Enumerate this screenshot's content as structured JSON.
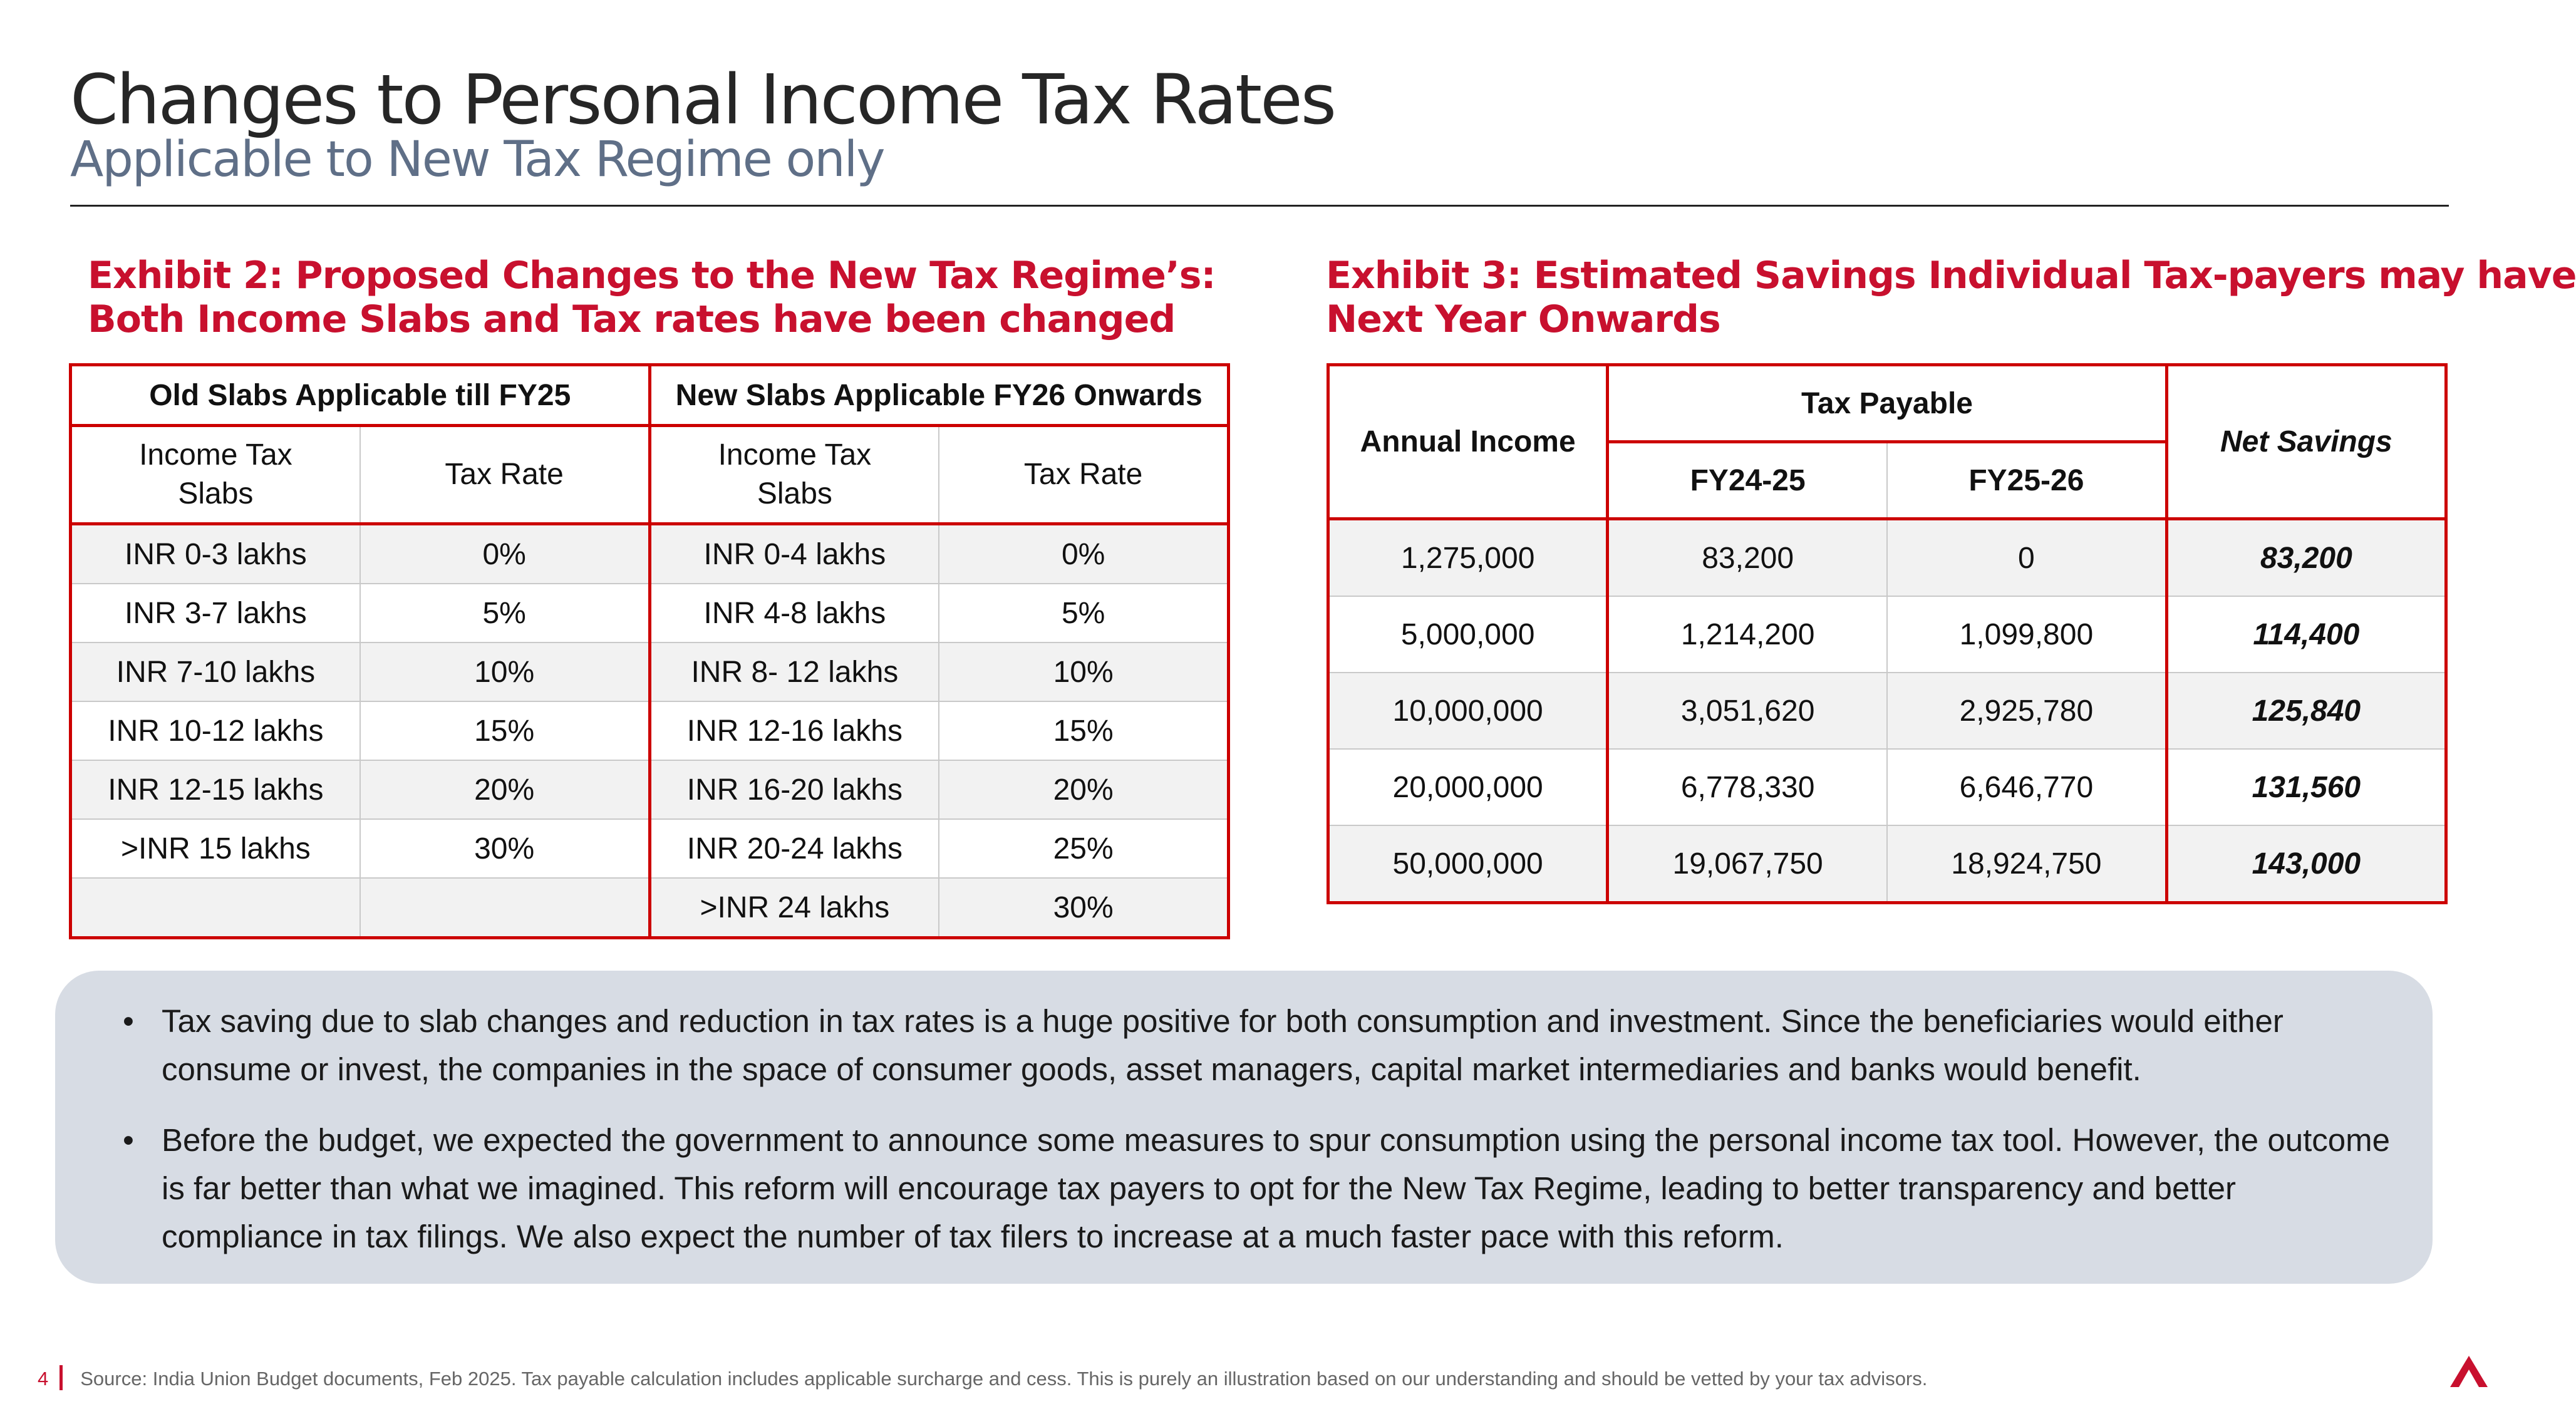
{
  "header": {
    "title": "Changes to Personal Income Tax Rates",
    "subtitle": "Applicable to New Tax Regime only"
  },
  "exhibit2": {
    "title_line1": "Exhibit 2: Proposed Changes to the New Tax Regime’s:",
    "title_line2": "Both Income Slabs and Tax rates have been changed",
    "old_header": "Old Slabs Applicable till FY25",
    "new_header": "New Slabs Applicable FY26 Onwards",
    "col_slabs_line1": "Income Tax",
    "col_slabs_line2": "Slabs",
    "col_rate": "Tax Rate",
    "rows": [
      {
        "old_slab": "INR 0-3 lakhs",
        "old_rate": "0%",
        "new_slab": "INR 0-4 lakhs",
        "new_rate": "0%"
      },
      {
        "old_slab": "INR 3-7 lakhs",
        "old_rate": "5%",
        "new_slab": "INR 4-8 lakhs",
        "new_rate": "5%"
      },
      {
        "old_slab": "INR 7-10 lakhs",
        "old_rate": "10%",
        "new_slab": "INR 8- 12 lakhs",
        "new_rate": "10%"
      },
      {
        "old_slab": "INR 10-12 lakhs",
        "old_rate": "15%",
        "new_slab": "INR 12-16 lakhs",
        "new_rate": "15%"
      },
      {
        "old_slab": "INR 12-15 lakhs",
        "old_rate": "20%",
        "new_slab": "INR 16-20 lakhs",
        "new_rate": "20%"
      },
      {
        "old_slab": ">INR 15 lakhs",
        "old_rate": "30%",
        "new_slab": "INR 20-24 lakhs",
        "new_rate": "25%"
      },
      {
        "old_slab": "",
        "old_rate": "",
        "new_slab": ">INR 24 lakhs",
        "new_rate": "30%"
      }
    ]
  },
  "exhibit3": {
    "title_line1": "Exhibit 3: Estimated Savings Individual Tax-payers may have",
    "title_line2": "Next Year Onwards",
    "col_income": "Annual Income",
    "col_tax_payable": "Tax Payable",
    "col_fy1": "FY24-25",
    "col_fy2": "FY25-26",
    "col_net": "Net Savings",
    "rows": [
      {
        "income": "1,275,000",
        "fy1": "83,200",
        "fy2": "0",
        "net": "83,200"
      },
      {
        "income": "5,000,000",
        "fy1": "1,214,200",
        "fy2": "1,099,800",
        "net": "114,400"
      },
      {
        "income": "10,000,000",
        "fy1": "3,051,620",
        "fy2": "2,925,780",
        "net": "125,840"
      },
      {
        "income": "20,000,000",
        "fy1": "6,778,330",
        "fy2": "6,646,770",
        "net": "131,560"
      },
      {
        "income": "50,000,000",
        "fy1": "19,067,750",
        "fy2": "18,924,750",
        "net": "143,000"
      }
    ]
  },
  "notes": {
    "bullet1": "Tax saving due to slab changes and reduction in tax rates is a huge positive for both consumption and investment. Since the beneficiaries would either consume or invest, the companies in the space of consumer goods, asset managers, capital market intermediaries and banks would benefit.",
    "bullet2": "Before the budget, we expected the government to announce some measures to spur consumption using the personal income tax tool. However, the outcome is far better than what we imagined. This reform will encourage tax payers to opt for the New Tax Regime, leading to better transparency and better compliance in tax filings. We also expect the number of tax filers to increase at a much faster pace with this reform."
  },
  "footer": {
    "page_number": "4",
    "source": "Source: India Union Budget documents, Feb 2025. Tax payable calculation includes applicable surcharge and cess.  This is purely an illustration based on our understanding and should be vetted by your tax advisors."
  },
  "colors": {
    "accent": "#c8102e",
    "subtitle": "#5f6f87",
    "notes_bg": "#d7dce4"
  },
  "icons": {
    "logo": "brand-chevron-logo"
  }
}
